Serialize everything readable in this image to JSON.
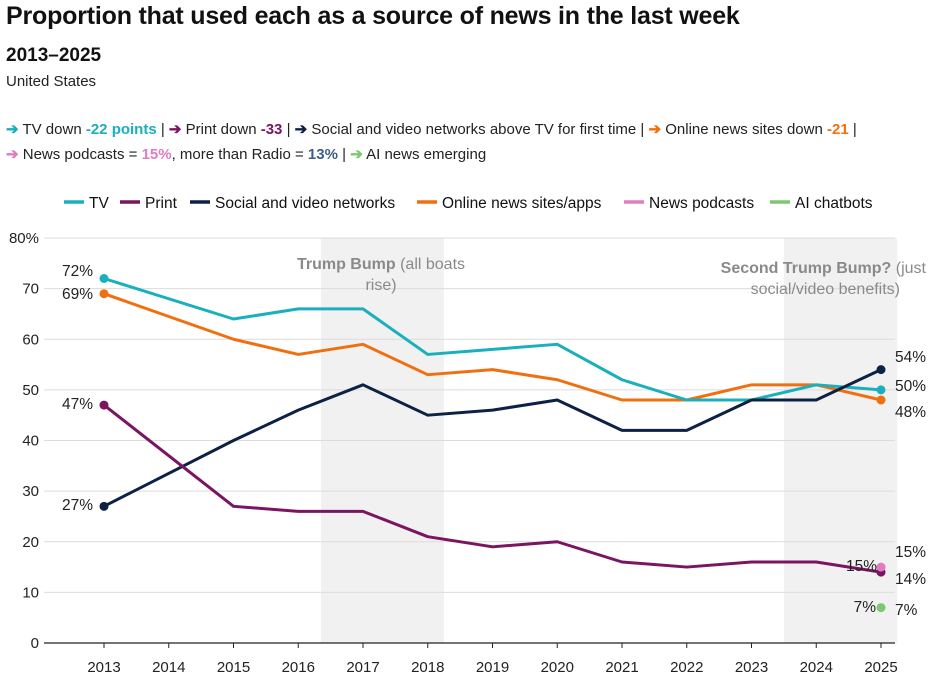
{
  "title": "Proportion that used each as a source of news in the last week",
  "subtitle": "2013–2025",
  "region": "United States",
  "summary": {
    "line1": [
      {
        "arrow": "➔",
        "color": "#1aafbd",
        "text": " TV down ",
        "value": "-22 points",
        "sep": " | "
      },
      {
        "arrow": "➔",
        "color": "#7b1461",
        "text": " Print down ",
        "value": "-33",
        "sep": " | "
      },
      {
        "arrow": "➔",
        "color": "#0d2145",
        "text": " Social and video networks above TV for first time",
        "value": "",
        "sep": " | "
      },
      {
        "arrow": "➔",
        "color": "#f07010",
        "text": " Online news sites down ",
        "value": "-21",
        "sep": " |"
      }
    ],
    "line2": [
      {
        "arrow": "➔",
        "color": "#e27bbf",
        "text": " News podcasts = ",
        "value": "15%",
        "text2": ", more than Radio = ",
        "value2": "13%",
        "value2_color": "#3a5f8a",
        "sep": " | "
      },
      {
        "arrow": "➔",
        "color": "#7cc870",
        "text": " AI news emerging",
        "value": "",
        "sep": ""
      }
    ]
  },
  "chart_data": {
    "type": "line",
    "x": [
      2013,
      2014,
      2015,
      2016,
      2017,
      2018,
      2019,
      2020,
      2021,
      2022,
      2023,
      2024,
      2025
    ],
    "ylim": [
      0,
      80
    ],
    "yticks": [
      0,
      10,
      20,
      30,
      40,
      50,
      60,
      70,
      80
    ],
    "ytick_labels": [
      "0",
      "10",
      "20",
      "30",
      "40",
      "50",
      "60",
      "70",
      "80%"
    ],
    "grid": true,
    "legend": "top",
    "series": [
      {
        "name": "TV",
        "color": "#1aafbd",
        "x": [
          2013,
          2015,
          2016,
          2017,
          2018,
          2019,
          2020,
          2021,
          2022,
          2023,
          2024,
          2025
        ],
        "values": [
          72,
          64,
          66,
          66,
          57,
          58,
          59,
          52,
          48,
          48,
          51,
          50
        ],
        "start_label": "72%",
        "end_label": "50%"
      },
      {
        "name": "Print",
        "color": "#7b1461",
        "x": [
          2013,
          2015,
          2016,
          2017,
          2018,
          2019,
          2020,
          2021,
          2022,
          2023,
          2024,
          2025
        ],
        "values": [
          47,
          27,
          26,
          26,
          21,
          19,
          20,
          16,
          15,
          16,
          16,
          14
        ],
        "start_label": "47%",
        "end_label": "14%"
      },
      {
        "name": "Social and video networks",
        "color": "#0d2145",
        "x": [
          2013,
          2015,
          2016,
          2017,
          2018,
          2019,
          2020,
          2021,
          2022,
          2023,
          2024,
          2025
        ],
        "values": [
          27,
          40,
          46,
          51,
          45,
          46,
          48,
          42,
          42,
          48,
          48,
          54
        ],
        "start_label": "27%",
        "end_label": "54%"
      },
      {
        "name": "Online news sites/apps",
        "color": "#f07010",
        "x": [
          2013,
          2015,
          2016,
          2017,
          2018,
          2019,
          2020,
          2021,
          2022,
          2023,
          2024,
          2025
        ],
        "values": [
          69,
          60,
          57,
          59,
          53,
          54,
          52,
          48,
          48,
          51,
          51,
          48
        ],
        "start_label": "69%",
        "end_label": "48%"
      },
      {
        "name": "News podcasts",
        "color": "#e27bbf",
        "x": [
          2025
        ],
        "values": [
          15
        ],
        "start_label": "15%",
        "end_label": "15%"
      },
      {
        "name": "AI chatbots",
        "color": "#7cc870",
        "x": [
          2025
        ],
        "values": [
          7
        ],
        "start_label": "7%",
        "end_label": "7%"
      }
    ],
    "shaded_ranges": [
      {
        "from": 2016.35,
        "to": 2018.25,
        "title": "Trump Bump",
        "rest": " (all boats",
        "line2": "rise)"
      },
      {
        "from": 2023.5,
        "to": 2025.25,
        "title": "Second Trump Bump?",
        "rest": " (just",
        "line2": "social/video benefits)"
      }
    ]
  }
}
